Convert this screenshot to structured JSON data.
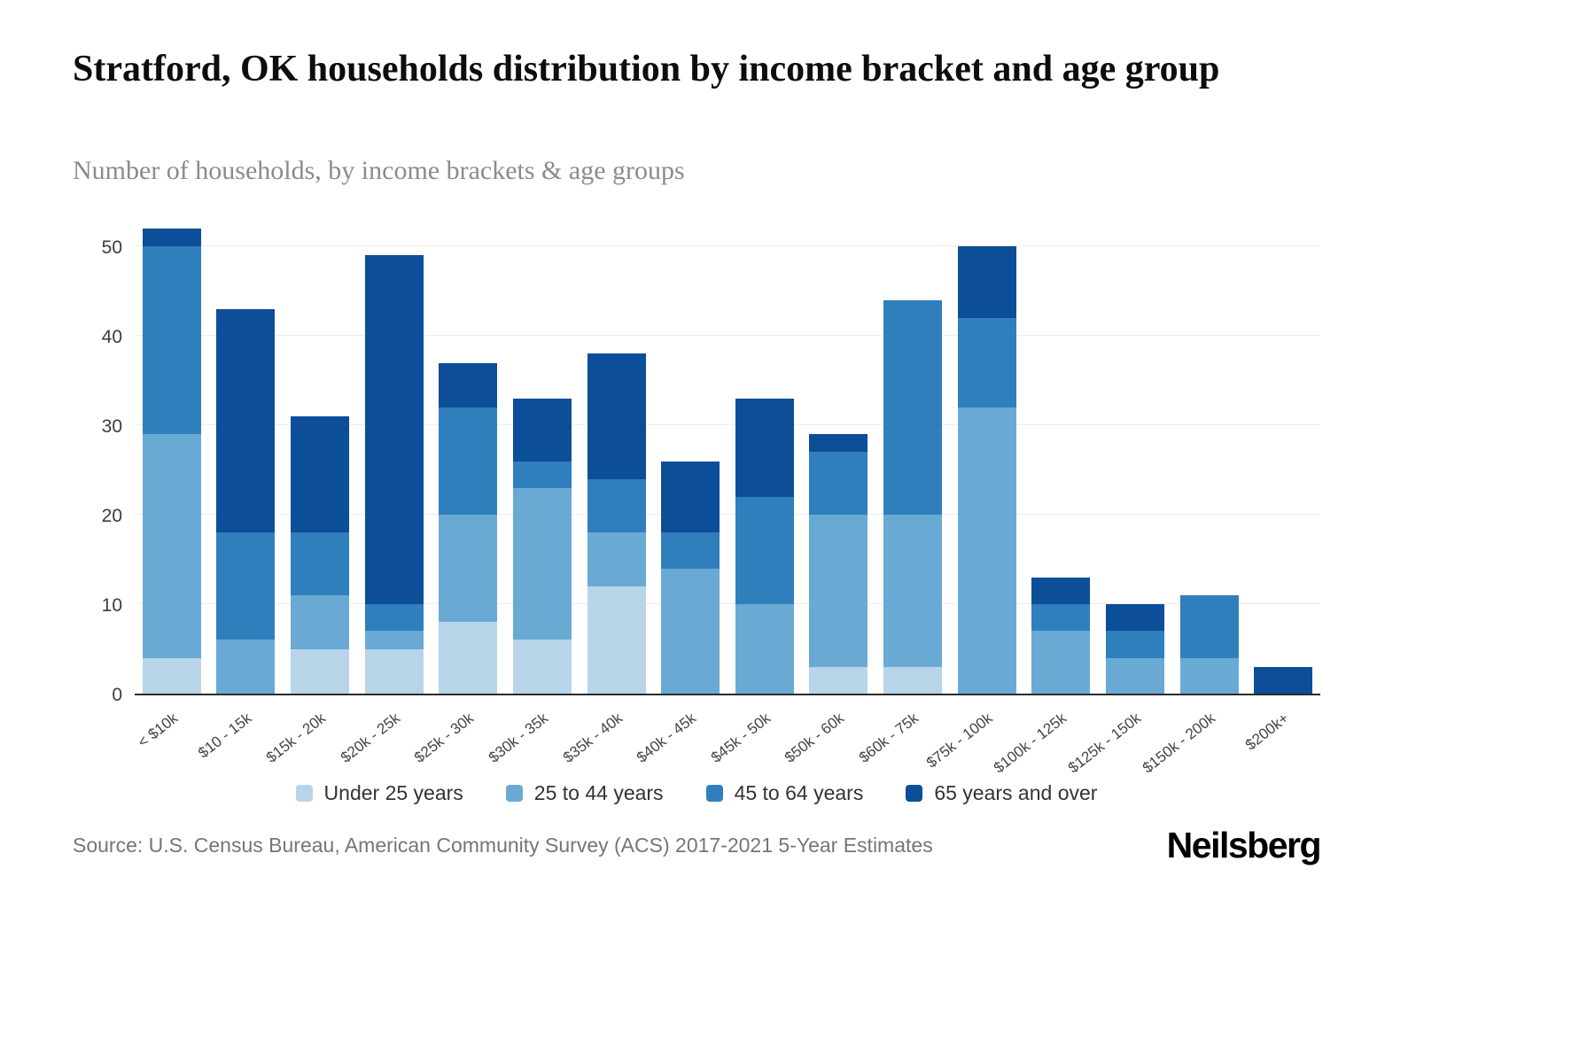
{
  "page": {
    "title": "Stratford, OK households distribution by income bracket and age group",
    "subtitle": "Number of households, by income brackets & age groups",
    "source": "Source: U.S. Census Bureau, American Community Survey (ACS) 2017-2021 5-Year Estimates",
    "brand": "Neilsberg"
  },
  "chart_data": {
    "type": "bar",
    "stacked": true,
    "title": "Stratford, OK households distribution by income bracket and age group",
    "xlabel": "",
    "ylabel": "Number of households",
    "ylim": [
      0,
      53
    ],
    "yticks": [
      0,
      10,
      20,
      30,
      40,
      50
    ],
    "grid": true,
    "legend_position": "bottom",
    "categories": [
      "< $10k",
      "$10 - 15k",
      "$15k - 20k",
      "$20k - 25k",
      "$25k - 30k",
      "$30k - 35k",
      "$35k - 40k",
      "$40k - 45k",
      "$45k - 50k",
      "$50k - 60k",
      "$60k - 75k",
      "$75k - 100k",
      "$100k - 125k",
      "$125k - 150k",
      "$150k - 200k",
      "$200k+"
    ],
    "series": [
      {
        "name": "Under 25 years",
        "color": "#b8d4e9",
        "values": [
          4,
          0,
          5,
          5,
          8,
          6,
          12,
          0,
          0,
          3,
          3,
          0,
          0,
          0,
          0,
          0
        ]
      },
      {
        "name": "25 to 44 years",
        "color": "#69aad5",
        "values": [
          25,
          6,
          6,
          2,
          12,
          17,
          6,
          14,
          10,
          17,
          17,
          32,
          7,
          4,
          4,
          0
        ]
      },
      {
        "name": "45 to 64 years",
        "color": "#2f7fbd",
        "values": [
          21,
          12,
          7,
          3,
          12,
          3,
          6,
          4,
          12,
          7,
          24,
          10,
          3,
          3,
          7,
          0
        ]
      },
      {
        "name": "65 years and over",
        "color": "#0d4e98",
        "values": [
          2,
          25,
          13,
          39,
          5,
          7,
          14,
          8,
          11,
          2,
          0,
          8,
          3,
          3,
          0,
          3
        ]
      }
    ],
    "totals": [
      52,
      43,
      31,
      49,
      37,
      33,
      38,
      26,
      33,
      29,
      44,
      50,
      13,
      10,
      11,
      3
    ]
  }
}
